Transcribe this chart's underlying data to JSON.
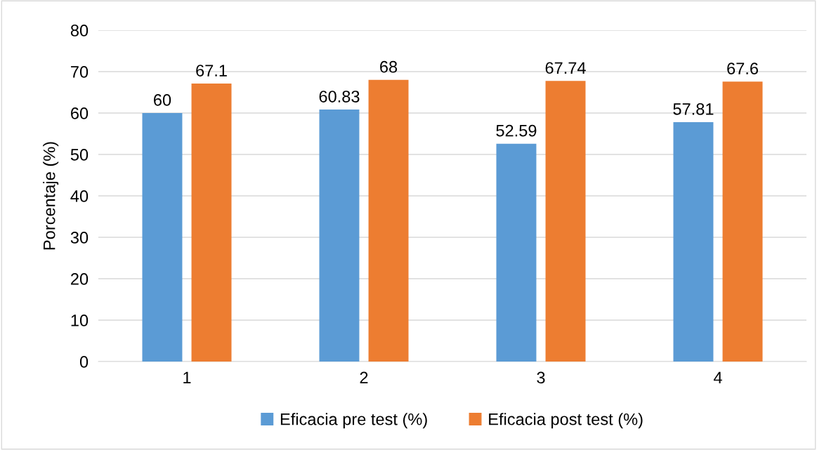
{
  "chart_data": {
    "type": "bar",
    "ylabel": "Porcentaje (%)",
    "categories": [
      "1",
      "2",
      "3",
      "4"
    ],
    "series": [
      {
        "name": "Eficacia pre test (%)",
        "color": "#5b9bd5",
        "values": [
          60,
          60.83,
          52.59,
          57.81
        ]
      },
      {
        "name": "Eficacia post test (%)",
        "color": "#ed7d31",
        "values": [
          67.1,
          68,
          67.74,
          67.6
        ]
      }
    ],
    "ylim": [
      0,
      80
    ],
    "yticks": [
      0,
      10,
      20,
      30,
      40,
      50,
      60,
      70,
      80
    ],
    "grid": "y",
    "legend": "bottom",
    "data_labels": true
  }
}
